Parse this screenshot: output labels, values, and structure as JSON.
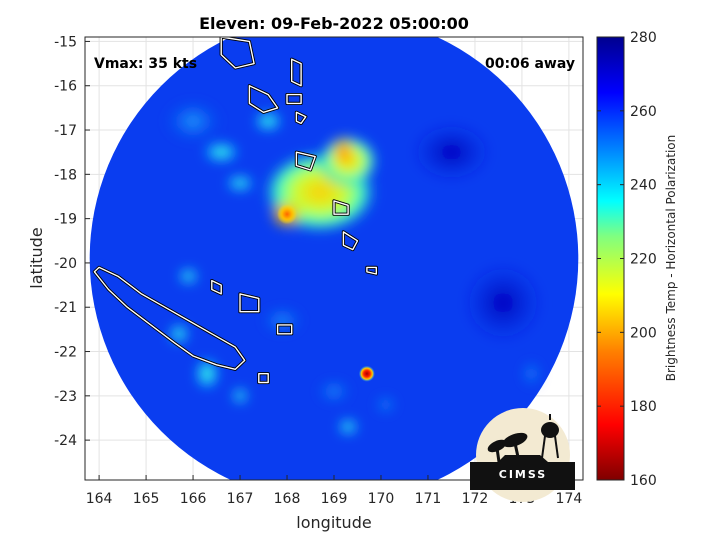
{
  "title": "Eleven: 09-Feb-2022 05:00:00",
  "annotations": {
    "vmax": "Vmax: 35 kts",
    "away": "00:06 away"
  },
  "logo_text": "CIMSS",
  "chart_data": {
    "type": "heatmap",
    "title": "Eleven: 09-Feb-2022 05:00:00",
    "xlabel": "longitude",
    "ylabel": "latitude",
    "xlim": [
      163.7,
      174.3
    ],
    "ylim": [
      -24.9,
      -14.9
    ],
    "xticks": [
      "164",
      "165",
      "166",
      "167",
      "168",
      "169",
      "170",
      "171",
      "172",
      "173",
      "174"
    ],
    "yticks": [
      "-15",
      "-16",
      "-17",
      "-18",
      "-19",
      "-20",
      "-21",
      "-22",
      "-23",
      "-24"
    ],
    "grid": true,
    "colorbar": {
      "label": "Brightness Temp - Horizontal Polarization",
      "range": [
        160,
        280
      ],
      "ticks": [
        "280",
        "260",
        "240",
        "220",
        "200",
        "180",
        "160"
      ],
      "colors": [
        "#7f0000",
        "#ff0000",
        "#ff8000",
        "#ffff00",
        "#80ff80",
        "#00ffff",
        "#0080ff",
        "#0000ff",
        "#00008f"
      ]
    },
    "swath": {
      "center_lon": 169.0,
      "center_lat": -19.9,
      "radius_deg": 5.2
    },
    "features": [
      {
        "name": "main-convection",
        "lon": 168.9,
        "lat": -18.6,
        "min_tb": 200
      },
      {
        "name": "cold-core",
        "lon": 168.0,
        "lat": -18.9,
        "min_tb": 190
      },
      {
        "name": "small-cell",
        "lon": 169.7,
        "lat": -22.5,
        "min_tb": 175
      }
    ],
    "coastlines": [
      {
        "name": "new-caledonia",
        "points": [
          [
            164.0,
            -20.1
          ],
          [
            164.4,
            -20.3
          ],
          [
            164.9,
            -20.7
          ],
          [
            165.4,
            -21.0
          ],
          [
            165.9,
            -21.3
          ],
          [
            166.4,
            -21.6
          ],
          [
            166.9,
            -21.9
          ],
          [
            167.1,
            -22.2
          ],
          [
            166.9,
            -22.4
          ],
          [
            166.5,
            -22.3
          ],
          [
            166.0,
            -22.1
          ],
          [
            165.6,
            -21.8
          ],
          [
            165.1,
            -21.4
          ],
          [
            164.6,
            -21.0
          ],
          [
            164.2,
            -20.6
          ],
          [
            163.9,
            -20.2
          ],
          [
            164.0,
            -20.1
          ]
        ]
      },
      {
        "name": "vanuatu-espiritu-santo",
        "points": [
          [
            166.6,
            -14.9
          ],
          [
            167.2,
            -15.0
          ],
          [
            167.3,
            -15.5
          ],
          [
            166.9,
            -15.6
          ],
          [
            166.6,
            -15.3
          ],
          [
            166.6,
            -14.9
          ]
        ]
      },
      {
        "name": "vanuatu-malekula",
        "points": [
          [
            167.2,
            -16.0
          ],
          [
            167.6,
            -16.2
          ],
          [
            167.8,
            -16.5
          ],
          [
            167.5,
            -16.6
          ],
          [
            167.2,
            -16.4
          ],
          [
            167.2,
            -16.0
          ]
        ]
      },
      {
        "name": "vanuatu-efate",
        "points": [
          [
            168.2,
            -17.5
          ],
          [
            168.6,
            -17.6
          ],
          [
            168.5,
            -17.9
          ],
          [
            168.2,
            -17.8
          ],
          [
            168.2,
            -17.5
          ]
        ]
      },
      {
        "name": "vanuatu-erromango",
        "points": [
          [
            169.0,
            -18.6
          ],
          [
            169.3,
            -18.7
          ],
          [
            169.3,
            -18.9
          ],
          [
            169.0,
            -18.9
          ],
          [
            169.0,
            -18.6
          ]
        ]
      },
      {
        "name": "vanuatu-tanna",
        "points": [
          [
            169.2,
            -19.3
          ],
          [
            169.5,
            -19.5
          ],
          [
            169.4,
            -19.7
          ],
          [
            169.2,
            -19.6
          ],
          [
            169.2,
            -19.3
          ]
        ]
      },
      {
        "name": "vanuatu-aneityum",
        "points": [
          [
            169.7,
            -20.1
          ],
          [
            169.9,
            -20.1
          ],
          [
            169.9,
            -20.25
          ],
          [
            169.7,
            -20.2
          ],
          [
            169.7,
            -20.1
          ]
        ]
      },
      {
        "name": "vanuatu-pentecost",
        "points": [
          [
            168.1,
            -15.4
          ],
          [
            168.3,
            -15.5
          ],
          [
            168.3,
            -16.0
          ],
          [
            168.1,
            -15.9
          ],
          [
            168.1,
            -15.4
          ]
        ]
      },
      {
        "name": "vanuatu-ambrym",
        "points": [
          [
            168.0,
            -16.2
          ],
          [
            168.3,
            -16.2
          ],
          [
            168.3,
            -16.4
          ],
          [
            168.0,
            -16.4
          ],
          [
            168.0,
            -16.2
          ]
        ]
      },
      {
        "name": "vanuatu-epi",
        "points": [
          [
            168.2,
            -16.6
          ],
          [
            168.4,
            -16.7
          ],
          [
            168.3,
            -16.85
          ],
          [
            168.2,
            -16.8
          ],
          [
            168.2,
            -16.6
          ]
        ]
      },
      {
        "name": "loyalty-ouvea",
        "points": [
          [
            166.4,
            -20.4
          ],
          [
            166.6,
            -20.5
          ],
          [
            166.6,
            -20.7
          ],
          [
            166.4,
            -20.6
          ],
          [
            166.4,
            -20.4
          ]
        ]
      },
      {
        "name": "loyalty-lifou",
        "points": [
          [
            167.0,
            -20.7
          ],
          [
            167.4,
            -20.8
          ],
          [
            167.4,
            -21.1
          ],
          [
            167.0,
            -21.1
          ],
          [
            167.0,
            -20.7
          ]
        ]
      },
      {
        "name": "loyalty-mare",
        "points": [
          [
            167.8,
            -21.4
          ],
          [
            168.1,
            -21.4
          ],
          [
            168.1,
            -21.6
          ],
          [
            167.8,
            -21.6
          ],
          [
            167.8,
            -21.4
          ]
        ]
      },
      {
        "name": "isle-of-pines",
        "points": [
          [
            167.4,
            -22.5
          ],
          [
            167.6,
            -22.5
          ],
          [
            167.6,
            -22.7
          ],
          [
            167.4,
            -22.7
          ],
          [
            167.4,
            -22.5
          ]
        ]
      }
    ]
  }
}
